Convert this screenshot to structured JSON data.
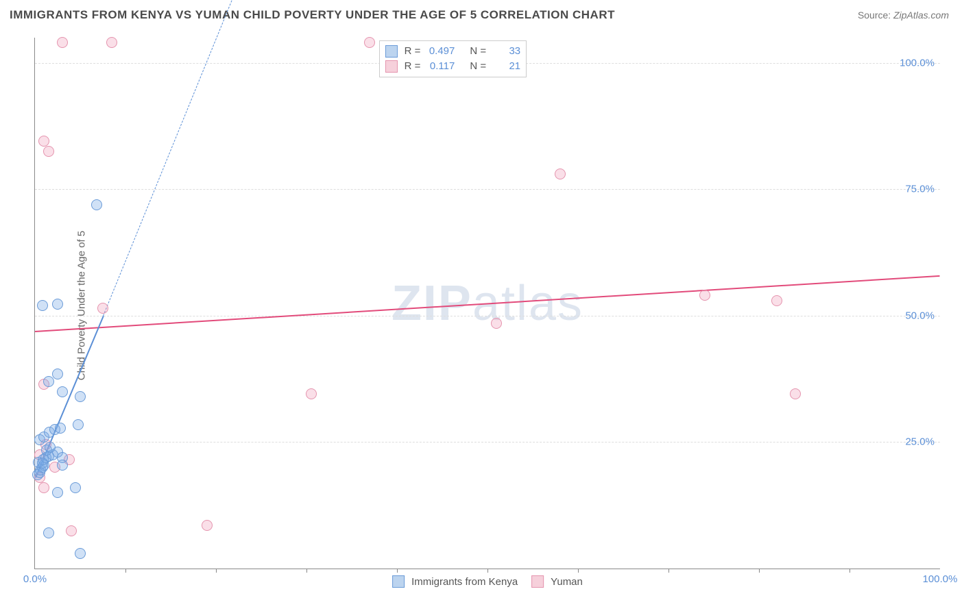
{
  "title": "IMMIGRANTS FROM KENYA VS YUMAN CHILD POVERTY UNDER THE AGE OF 5 CORRELATION CHART",
  "source_label": "Source:",
  "source_value": "ZipAtlas.com",
  "y_axis_label": "Child Poverty Under the Age of 5",
  "watermark_a": "ZIP",
  "watermark_b": "atlas",
  "chart": {
    "type": "scatter",
    "xlim": [
      0,
      100
    ],
    "ylim": [
      0,
      105
    ],
    "x_ticks": [
      {
        "v": 0,
        "label": "0.0%"
      },
      {
        "v": 100,
        "label": "100.0%"
      }
    ],
    "x_minor_ticks": [
      10,
      20,
      30,
      40,
      50,
      60,
      70,
      80,
      90
    ],
    "y_ticks": [
      {
        "v": 25,
        "label": "25.0%"
      },
      {
        "v": 50,
        "label": "50.0%"
      },
      {
        "v": 75,
        "label": "75.0%"
      },
      {
        "v": 100,
        "label": "100.0%"
      }
    ],
    "marker_radius": 7,
    "marker_border_width": 1.2,
    "background_color": "#ffffff",
    "grid_color": "#dddddd",
    "series": [
      {
        "name": "Immigrants from Kenya",
        "fill": "rgba(120,170,230,0.35)",
        "stroke": "#6a9bd8",
        "swatch_fill": "#bcd4ef",
        "swatch_stroke": "#6a9bd8",
        "r_value": "0.497",
        "n_value": "33",
        "trend": {
          "x0": 0,
          "y0": 18,
          "x1": 7.5,
          "y1": 50,
          "solid_until_x": 7.5,
          "dash_x1": 28,
          "dash_y1": 140,
          "color": "#5b8fd6",
          "width": 2
        },
        "points": [
          {
            "x": 0.3,
            "y": 18.5
          },
          {
            "x": 0.5,
            "y": 19.0
          },
          {
            "x": 0.6,
            "y": 19.5
          },
          {
            "x": 0.8,
            "y": 20.0
          },
          {
            "x": 1.0,
            "y": 20.5
          },
          {
            "x": 0.4,
            "y": 21.0
          },
          {
            "x": 0.9,
            "y": 21.5
          },
          {
            "x": 1.2,
            "y": 22.0
          },
          {
            "x": 1.5,
            "y": 22.2
          },
          {
            "x": 2.0,
            "y": 22.5
          },
          {
            "x": 2.5,
            "y": 23.0
          },
          {
            "x": 1.3,
            "y": 23.5
          },
          {
            "x": 1.7,
            "y": 24.0
          },
          {
            "x": 3.0,
            "y": 22.0
          },
          {
            "x": 3.0,
            "y": 20.5
          },
          {
            "x": 0.5,
            "y": 25.5
          },
          {
            "x": 1.0,
            "y": 26.0
          },
          {
            "x": 1.6,
            "y": 27.0
          },
          {
            "x": 2.2,
            "y": 27.5
          },
          {
            "x": 2.8,
            "y": 27.8
          },
          {
            "x": 4.8,
            "y": 28.5
          },
          {
            "x": 3.0,
            "y": 35.0
          },
          {
            "x": 5.0,
            "y": 34.0
          },
          {
            "x": 1.5,
            "y": 37.0
          },
          {
            "x": 2.5,
            "y": 38.5
          },
          {
            "x": 0.8,
            "y": 52.0
          },
          {
            "x": 2.5,
            "y": 52.3
          },
          {
            "x": 6.8,
            "y": 72.0
          },
          {
            "x": 2.5,
            "y": 15.0
          },
          {
            "x": 4.5,
            "y": 16.0
          },
          {
            "x": 1.5,
            "y": 7.0
          },
          {
            "x": 5.0,
            "y": 3.0
          },
          {
            "x": 0.8,
            "y": 20.8
          }
        ]
      },
      {
        "name": "Yuman",
        "fill": "rgba(240,150,180,0.30)",
        "stroke": "#e594ae",
        "swatch_fill": "#f6d0db",
        "swatch_stroke": "#e594ae",
        "r_value": "0.117",
        "n_value": "21",
        "trend": {
          "x0": 0,
          "y0": 47,
          "x1": 100,
          "y1": 58,
          "color": "#e24a7a",
          "width": 2
        },
        "points": [
          {
            "x": 3.0,
            "y": 104.0
          },
          {
            "x": 8.5,
            "y": 104.0
          },
          {
            "x": 37.0,
            "y": 104.0
          },
          {
            "x": 1.0,
            "y": 84.5
          },
          {
            "x": 1.5,
            "y": 82.5
          },
          {
            "x": 58.0,
            "y": 78.0
          },
          {
            "x": 7.5,
            "y": 51.5
          },
          {
            "x": 74.0,
            "y": 54.0
          },
          {
            "x": 82.0,
            "y": 53.0
          },
          {
            "x": 51.0,
            "y": 48.5
          },
          {
            "x": 30.5,
            "y": 34.5
          },
          {
            "x": 84.0,
            "y": 34.5
          },
          {
            "x": 1.0,
            "y": 36.5
          },
          {
            "x": 2.2,
            "y": 20.0
          },
          {
            "x": 3.8,
            "y": 21.5
          },
          {
            "x": 0.5,
            "y": 22.5
          },
          {
            "x": 1.0,
            "y": 16.0
          },
          {
            "x": 4.0,
            "y": 7.5
          },
          {
            "x": 19.0,
            "y": 8.5
          },
          {
            "x": 1.2,
            "y": 24.5
          },
          {
            "x": 0.5,
            "y": 18.0
          }
        ]
      }
    ]
  },
  "legend_top": {
    "r_label": "R =",
    "n_label": "N ="
  },
  "legend_bottom_labels": [
    "Immigrants from Kenya",
    "Yuman"
  ]
}
